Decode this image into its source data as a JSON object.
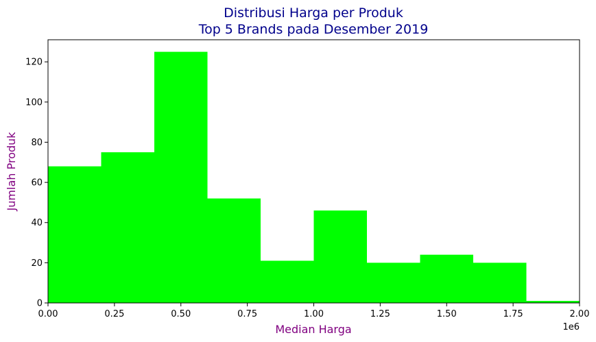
{
  "chart_data": {
    "type": "bar",
    "subtype": "histogram",
    "title_line1": "Distribusi Harga per Produk",
    "title_line2": "Top 5 Brands pada Desember 2019",
    "xlabel": "Median Harga",
    "ylabel": "Jumlah Produk",
    "x_offset_label": "1e6",
    "xlim": [
      0,
      2.0
    ],
    "ylim": [
      0,
      131
    ],
    "x_ticks": [
      0,
      0.25,
      0.5,
      0.75,
      1.0,
      1.25,
      1.5,
      1.75,
      2.0
    ],
    "x_tick_labels": [
      "0.00",
      "0.25",
      "0.50",
      "0.75",
      "1.00",
      "1.25",
      "1.50",
      "1.75",
      "2.00"
    ],
    "y_ticks": [
      0,
      20,
      40,
      60,
      80,
      100,
      120
    ],
    "y_tick_labels": [
      "0",
      "20",
      "40",
      "60",
      "80",
      "100",
      "120"
    ],
    "bin_edges": [
      0,
      0.2,
      0.4,
      0.6,
      0.8,
      1.0,
      1.2,
      1.4,
      1.6,
      1.8,
      2.0
    ],
    "counts": [
      68,
      75,
      125,
      52,
      21,
      46,
      20,
      24,
      20,
      1
    ],
    "grid": false,
    "colors": {
      "bars": "#00ff00",
      "title": "#00008b",
      "axis_labels": "#800080"
    }
  }
}
